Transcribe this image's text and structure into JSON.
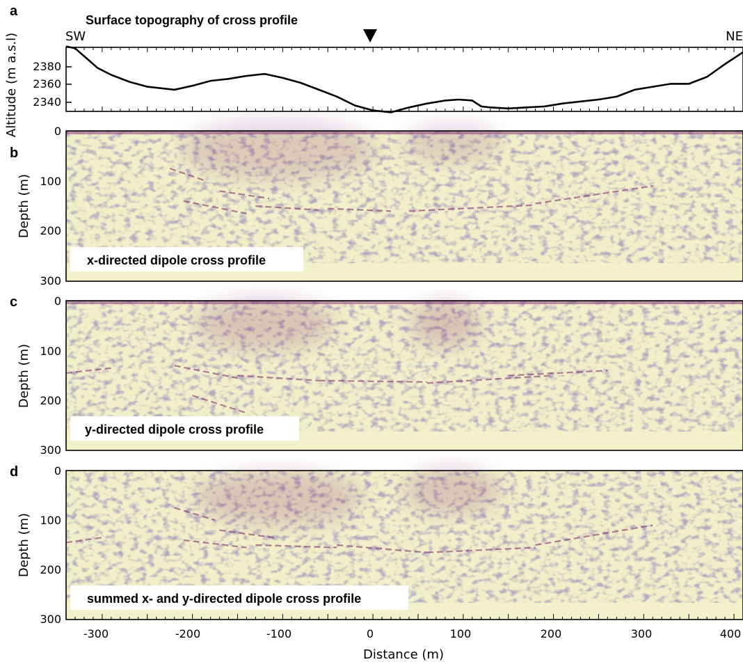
{
  "panels": {
    "a": "a",
    "b": "b",
    "c": "c",
    "d": "d"
  },
  "topo": {
    "title": "Surface topography of cross profile",
    "left_label": "SW",
    "right_label": "NE",
    "ylabel": "Altitude (m a.s.l)",
    "yticks": [
      "2380",
      "2360",
      "2340"
    ]
  },
  "sections": {
    "ylabel": "Depth (m)",
    "yticks": [
      "0",
      "100",
      "200",
      "300"
    ],
    "labels": [
      "x-directed dipole cross profile",
      "y-directed dipole cross profile",
      "summed x- and y-directed dipole cross profile"
    ]
  },
  "xaxis": {
    "label": "Distance (m)",
    "ticks": [
      "-300",
      "-200",
      "-100",
      "0",
      "100",
      "200",
      "300",
      "400"
    ]
  },
  "colors": {
    "background": "#f1efc9",
    "noise": "#8a7f9a",
    "strong": "#7a2a66",
    "line": "#000000"
  },
  "chart_data": [
    {
      "type": "line",
      "title": "Surface topography of cross profile",
      "xlabel": "",
      "ylabel": "Altitude (m a.s.l)",
      "xlim": [
        -340,
        410
      ],
      "ylim": [
        2330,
        2395
      ],
      "marker_at_x": 0,
      "series": [
        {
          "x": [
            -340,
            -330,
            -320,
            -305,
            -290,
            -270,
            -250,
            -230,
            -220,
            -200,
            -180,
            -160,
            -140,
            -120,
            -100,
            -80,
            -60,
            -40,
            -20,
            0,
            20,
            40,
            60,
            80,
            95,
            110,
            120,
            130,
            150,
            170,
            190,
            210,
            230,
            250,
            270,
            290,
            310,
            330,
            350,
            370,
            390,
            410
          ],
          "y": [
            2396,
            2394,
            2386,
            2374,
            2367,
            2360,
            2355,
            2353,
            2352,
            2356,
            2361,
            2363,
            2366,
            2368,
            2364,
            2359,
            2352,
            2345,
            2336,
            2331,
            2329,
            2334,
            2338,
            2341,
            2342,
            2341,
            2335,
            2334,
            2333,
            2334,
            2335,
            2338,
            2340,
            2342,
            2345,
            2352,
            2355,
            2358,
            2358,
            2365,
            2378,
            2390
          ]
        }
      ]
    },
    {
      "type": "heatmap",
      "title": "x-directed dipole cross profile",
      "xlabel": "",
      "ylabel": "Depth (m)",
      "xlim": [
        -340,
        410
      ],
      "ylim": [
        300,
        0
      ],
      "reflectors": [
        {
          "x": [
            -225,
            -185
          ],
          "y": [
            75,
            100
          ]
        },
        {
          "x": [
            -170,
            -115
          ],
          "y": [
            120,
            135
          ]
        },
        {
          "x": [
            -210,
            -140
          ],
          "y": [
            140,
            165
          ]
        },
        {
          "x": [
            -130,
            -60
          ],
          "y": [
            150,
            158
          ]
        },
        {
          "x": [
            -50,
            20
          ],
          "y": [
            155,
            160
          ]
        },
        {
          "x": [
            40,
            180
          ],
          "y": [
            160,
            148
          ]
        },
        {
          "x": [
            180,
            310
          ],
          "y": [
            145,
            110
          ]
        }
      ]
    },
    {
      "type": "heatmap",
      "title": "y-directed dipole cross profile",
      "xlabel": "",
      "ylabel": "Depth (m)",
      "xlim": [
        -340,
        410
      ],
      "ylim": [
        300,
        0
      ],
      "reflectors": [
        {
          "x": [
            -340,
            -290
          ],
          "y": [
            145,
            135
          ]
        },
        {
          "x": [
            -220,
            -150
          ],
          "y": [
            130,
            155
          ]
        },
        {
          "x": [
            -150,
            -60
          ],
          "y": [
            150,
            160
          ]
        },
        {
          "x": [
            -60,
            60
          ],
          "y": [
            160,
            163
          ]
        },
        {
          "x": [
            60,
            200
          ],
          "y": [
            165,
            150
          ]
        },
        {
          "x": [
            150,
            260
          ],
          "y": [
            150,
            140
          ]
        },
        {
          "x": [
            -200,
            -140
          ],
          "y": [
            190,
            225
          ]
        }
      ]
    },
    {
      "type": "heatmap",
      "title": "summed x- and y-directed dipole cross profile",
      "xlabel": "Distance (m)",
      "ylabel": "Depth (m)",
      "xlim": [
        -340,
        410
      ],
      "ylim": [
        300,
        0
      ],
      "reflectors": [
        {
          "x": [
            -340,
            -300
          ],
          "y": [
            145,
            135
          ]
        },
        {
          "x": [
            -220,
            -175
          ],
          "y": [
            75,
            100
          ]
        },
        {
          "x": [
            -170,
            -110
          ],
          "y": [
            120,
            135
          ]
        },
        {
          "x": [
            -210,
            -140
          ],
          "y": [
            140,
            155
          ]
        },
        {
          "x": [
            -130,
            -40
          ],
          "y": [
            150,
            155
          ]
        },
        {
          "x": [
            -40,
            60
          ],
          "y": [
            150,
            165
          ]
        },
        {
          "x": [
            60,
            180
          ],
          "y": [
            165,
            155
          ]
        },
        {
          "x": [
            180,
            310
          ],
          "y": [
            150,
            110
          ]
        }
      ]
    }
  ]
}
